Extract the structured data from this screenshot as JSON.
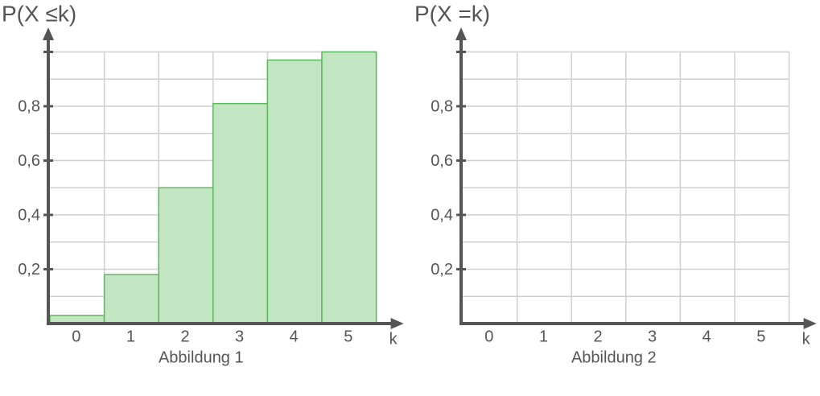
{
  "chart_data": [
    {
      "type": "bar",
      "title": "P(X ≤k)",
      "x_label": "k",
      "caption": "Abbildung 1",
      "categories": [
        "0",
        "1",
        "2",
        "3",
        "4",
        "5"
      ],
      "values": [
        0.03,
        0.18,
        0.5,
        0.81,
        0.97,
        1.0
      ],
      "color": "#c2e6c2",
      "edge_color": "#5cb85c",
      "ylim": [
        0,
        1.0
      ],
      "yticks": [
        {
          "value": 0.2,
          "label": "0,2"
        },
        {
          "value": 0.4,
          "label": "0,4"
        },
        {
          "value": 0.6,
          "label": "0,6"
        },
        {
          "value": 0.8,
          "label": "0,8"
        }
      ],
      "ygrid": [
        0.1,
        0.2,
        0.3,
        0.4,
        0.5,
        0.6,
        0.7,
        0.8,
        0.9,
        1.0
      ],
      "grid": true
    },
    {
      "type": "bar",
      "title": "P(X =k)",
      "x_label": "k",
      "caption": "Abbildung 2",
      "categories": [
        "0",
        "1",
        "2",
        "3",
        "4",
        "5"
      ],
      "ylim": [
        0,
        1.0
      ],
      "yticks": [
        {
          "value": 0.2,
          "label": "0,2"
        },
        {
          "value": 0.4,
          "label": "0,4"
        },
        {
          "value": 0.6,
          "label": "0,6"
        },
        {
          "value": 0.8,
          "label": "0,8"
        }
      ],
      "ygrid": [
        0.1,
        0.2,
        0.3,
        0.4,
        0.5,
        0.6,
        0.7,
        0.8,
        0.9,
        1.0
      ],
      "grid": true
    }
  ]
}
